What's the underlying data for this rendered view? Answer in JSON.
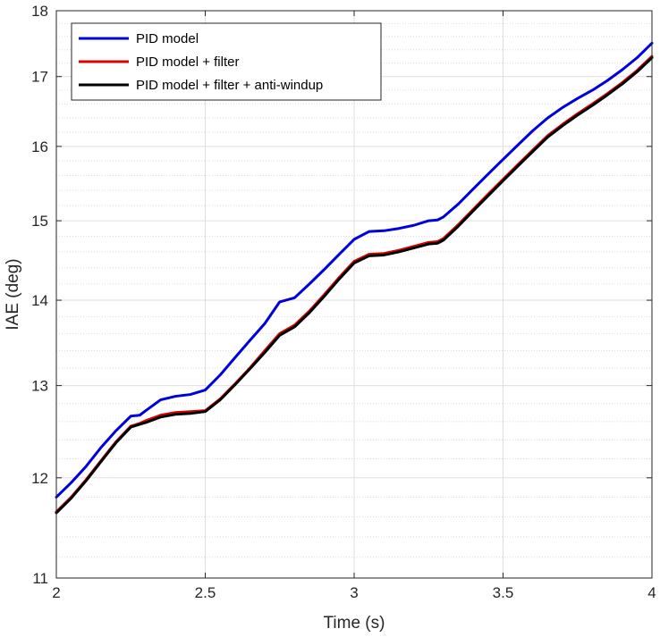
{
  "chart_data": {
    "type": "line",
    "title": "",
    "xlabel": "Time (s)",
    "ylabel": "IAE (deg)",
    "xlim": [
      2,
      4
    ],
    "ylim": [
      11,
      18
    ],
    "yscale": "log",
    "grid": true,
    "minor_grid": true,
    "legend_position": "top-left",
    "x_ticks": [
      "2",
      "2.5",
      "3",
      "3.5",
      "4"
    ],
    "y_ticks": [
      "11",
      "12",
      "13",
      "14",
      "15",
      "16",
      "17",
      "18"
    ],
    "x_tick_values": [
      2,
      2.5,
      3,
      3.5,
      4
    ],
    "y_tick_values": [
      11,
      12,
      13,
      14,
      15,
      16,
      17,
      18
    ],
    "y_minor_values": [
      11.2,
      11.4,
      11.6,
      11.8,
      12.2,
      12.4,
      12.6,
      12.8,
      13.2,
      13.4,
      13.6,
      13.8,
      14.2,
      14.4,
      14.6,
      14.8,
      15.2,
      15.4,
      15.6,
      15.8,
      16.2,
      16.4,
      16.6,
      16.8,
      17.2,
      17.4,
      17.6,
      17.8
    ],
    "series": [
      {
        "name": "PID model",
        "color": "#0000dd",
        "x": [
          2.0,
          2.05,
          2.1,
          2.15,
          2.2,
          2.25,
          2.28,
          2.3,
          2.35,
          2.4,
          2.45,
          2.5,
          2.55,
          2.6,
          2.65,
          2.7,
          2.75,
          2.8,
          2.85,
          2.9,
          2.95,
          3.0,
          3.05,
          3.1,
          3.15,
          3.2,
          3.25,
          3.28,
          3.3,
          3.35,
          3.4,
          3.45,
          3.5,
          3.55,
          3.6,
          3.65,
          3.7,
          3.75,
          3.8,
          3.85,
          3.9,
          3.95,
          4.0
        ],
        "y": [
          11.8,
          11.95,
          12.12,
          12.32,
          12.5,
          12.66,
          12.67,
          12.72,
          12.84,
          12.88,
          12.9,
          12.95,
          13.12,
          13.32,
          13.52,
          13.72,
          13.98,
          14.03,
          14.2,
          14.38,
          14.57,
          14.76,
          14.86,
          14.87,
          14.9,
          14.94,
          15.0,
          15.01,
          15.05,
          15.22,
          15.42,
          15.62,
          15.82,
          16.02,
          16.22,
          16.4,
          16.55,
          16.68,
          16.8,
          16.94,
          17.1,
          17.28,
          17.5
        ]
      },
      {
        "name": "PID model + filter",
        "color": "#dd0000",
        "x": [
          2.0,
          2.05,
          2.1,
          2.15,
          2.2,
          2.25,
          2.28,
          2.3,
          2.35,
          2.4,
          2.45,
          2.5,
          2.55,
          2.6,
          2.65,
          2.7,
          2.75,
          2.8,
          2.85,
          2.9,
          2.95,
          3.0,
          3.05,
          3.1,
          3.15,
          3.2,
          3.25,
          3.28,
          3.3,
          3.35,
          3.4,
          3.45,
          3.5,
          3.55,
          3.6,
          3.65,
          3.7,
          3.75,
          3.8,
          3.85,
          3.9,
          3.95,
          4.0
        ],
        "y": [
          11.65,
          11.8,
          11.98,
          12.18,
          12.38,
          12.55,
          12.58,
          12.61,
          12.67,
          12.7,
          12.71,
          12.72,
          12.85,
          13.02,
          13.2,
          13.4,
          13.6,
          13.7,
          13.87,
          14.07,
          14.28,
          14.48,
          14.57,
          14.58,
          14.62,
          14.67,
          14.72,
          14.73,
          14.77,
          14.95,
          15.15,
          15.35,
          15.55,
          15.75,
          15.95,
          16.15,
          16.31,
          16.46,
          16.6,
          16.75,
          16.91,
          17.09,
          17.3
        ]
      },
      {
        "name": "PID model + filter + anti-windup",
        "color": "#000000",
        "x": [
          2.0,
          2.05,
          2.1,
          2.15,
          2.2,
          2.25,
          2.28,
          2.3,
          2.35,
          2.4,
          2.45,
          2.5,
          2.55,
          2.6,
          2.65,
          2.7,
          2.75,
          2.8,
          2.85,
          2.9,
          2.95,
          3.0,
          3.05,
          3.1,
          3.15,
          3.2,
          3.25,
          3.28,
          3.3,
          3.35,
          3.4,
          3.45,
          3.5,
          3.55,
          3.6,
          3.65,
          3.7,
          3.75,
          3.8,
          3.85,
          3.9,
          3.95,
          4.0
        ],
        "y": [
          11.64,
          11.79,
          11.97,
          12.17,
          12.37,
          12.54,
          12.57,
          12.59,
          12.65,
          12.68,
          12.69,
          12.71,
          12.84,
          13.01,
          13.19,
          13.38,
          13.58,
          13.68,
          13.85,
          14.05,
          14.26,
          14.46,
          14.55,
          14.56,
          14.6,
          14.65,
          14.7,
          14.71,
          14.75,
          14.93,
          15.13,
          15.33,
          15.53,
          15.73,
          15.93,
          16.13,
          16.29,
          16.44,
          16.58,
          16.73,
          16.89,
          17.07,
          17.28
        ]
      }
    ]
  }
}
